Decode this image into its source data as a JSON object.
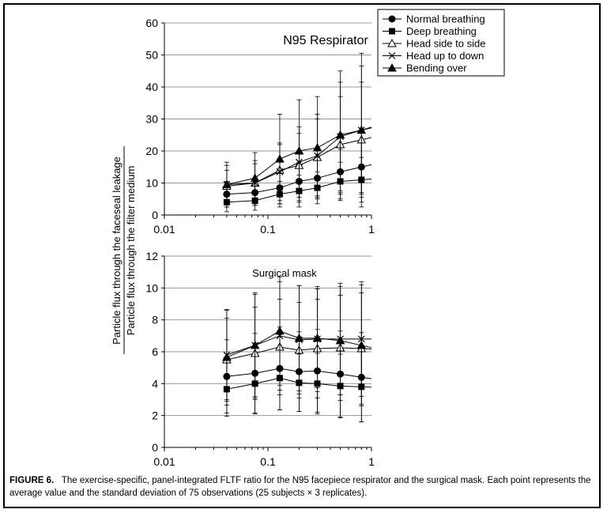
{
  "chart_data": [
    {
      "type": "line",
      "title": "N95 Respirator",
      "x_scale": "log",
      "xlim": [
        0.01,
        1
      ],
      "x_ticks": [
        "0.01",
        "0.1",
        "1"
      ],
      "ylim": [
        0,
        60
      ],
      "y_ticks": [
        "0",
        "10",
        "20",
        "30",
        "40",
        "50",
        "60"
      ],
      "grid": "horizontal",
      "legend": "top-right",
      "x": [
        0.04,
        0.075,
        0.13,
        0.2,
        0.3,
        0.5,
        0.8
      ],
      "series": [
        {
          "name": "Normal breathing",
          "marker": "circle",
          "values": [
            6.5,
            7.0,
            8.5,
            10.5,
            11.5,
            13.5,
            15.0
          ],
          "err": [
            4,
            4,
            5,
            6,
            6,
            7,
            8
          ]
        },
        {
          "name": "Deep breathing",
          "marker": "square",
          "values": [
            4.0,
            4.5,
            6.5,
            7.5,
            8.5,
            10.5,
            11.0
          ],
          "err": [
            3,
            3,
            4,
            5,
            5,
            6,
            7
          ]
        },
        {
          "name": "Head side to side",
          "marker": "triangle-open",
          "values": [
            9.0,
            10.0,
            14.0,
            15.5,
            18.0,
            22.0,
            23.5
          ],
          "err": [
            5,
            6,
            8,
            10,
            12,
            15,
            18
          ]
        },
        {
          "name": "Head up to down",
          "marker": "x",
          "values": [
            9.5,
            10.0,
            13.5,
            16.5,
            18.5,
            24.5,
            26.5
          ],
          "err": [
            6,
            7,
            9,
            11,
            13,
            17,
            20
          ]
        },
        {
          "name": "Bending over",
          "marker": "triangle-filled",
          "values": [
            9.5,
            11.5,
            17.5,
            20.0,
            21.0,
            25.0,
            26.5
          ],
          "err": [
            7,
            8,
            14,
            16,
            16,
            20,
            24
          ]
        }
      ]
    },
    {
      "type": "line",
      "title": "Surgical mask",
      "x_scale": "log",
      "xlim": [
        0.01,
        1
      ],
      "x_ticks": [
        "0.01",
        "0.1",
        "1"
      ],
      "ylim": [
        0,
        12
      ],
      "y_ticks": [
        "0",
        "2",
        "4",
        "6",
        "8",
        "10",
        "12"
      ],
      "grid": "horizontal",
      "x": [
        0.04,
        0.075,
        0.13,
        0.2,
        0.3,
        0.5,
        0.8
      ],
      "series": [
        {
          "name": "Normal breathing",
          "marker": "circle",
          "values": [
            4.45,
            4.65,
            4.95,
            4.75,
            4.8,
            4.6,
            4.4
          ],
          "err": [
            2.3,
            2.5,
            2.6,
            2.5,
            2.6,
            2.7,
            2.8
          ]
        },
        {
          "name": "Deep breathing",
          "marker": "square",
          "values": [
            3.65,
            4.0,
            4.35,
            4.05,
            4.0,
            3.85,
            3.8
          ],
          "err": [
            1.7,
            1.9,
            2.0,
            1.8,
            1.9,
            2.0,
            2.2
          ]
        },
        {
          "name": "Head side to side",
          "marker": "triangle-open",
          "values": [
            5.5,
            5.9,
            6.3,
            6.1,
            6.2,
            6.25,
            6.2
          ],
          "err": [
            2.6,
            2.9,
            3.0,
            3.0,
            3.1,
            3.3,
            3.5
          ]
        },
        {
          "name": "Head up to down",
          "marker": "x",
          "values": [
            5.8,
            6.4,
            7.0,
            6.75,
            6.8,
            6.8,
            6.8
          ],
          "err": [
            2.8,
            3.2,
            3.4,
            3.4,
            3.3,
            3.5,
            3.6
          ]
        },
        {
          "name": "Bending over",
          "marker": "triangle-filled",
          "values": [
            5.65,
            6.4,
            7.3,
            6.85,
            6.85,
            6.7,
            6.4
          ],
          "err": [
            3.0,
            3.3,
            3.4,
            3.3,
            3.1,
            3.4,
            3.8
          ]
        }
      ]
    }
  ],
  "ylabel_top": "Particle flux through the faceseal leakage",
  "ylabel_bottom": "Particle flux through the filter medium",
  "caption": {
    "figure": "FIGURE 6.",
    "text": "The exercise-specific, panel-integrated FLTF ratio for the N95 facepiece respirator and the surgical mask. Each point represents the average value and the standard deviation of 75 observations (25 subjects × 3 replicates)."
  }
}
